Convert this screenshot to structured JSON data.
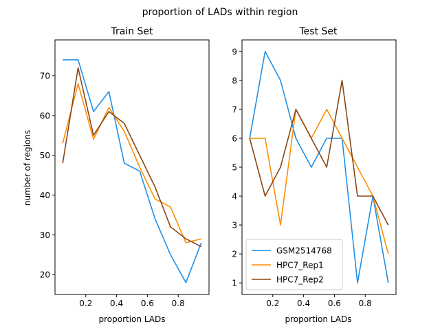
{
  "figure": {
    "suptitle": "proportion of LADs within region"
  },
  "colors": {
    "GSM2514768": "#1f8fe8",
    "HPC7_Rep1": "#ff8c00",
    "HPC7_Rep2": "#8b4513"
  },
  "chart_data": [
    {
      "type": "line",
      "title": "Train Set",
      "xlabel": "proportion LADs",
      "ylabel": "number of regions",
      "xlim": [
        0.0,
        1.0
      ],
      "ylim": [
        15,
        79
      ],
      "xticks": [
        0.2,
        0.4,
        0.6,
        0.8
      ],
      "xtick_labels": [
        "0.2",
        "0.4",
        "0.6",
        "0.8"
      ],
      "yticks": [
        20,
        30,
        40,
        50,
        60,
        70
      ],
      "ytick_labels": [
        "20",
        "30",
        "40",
        "50",
        "60",
        "70"
      ],
      "x": [
        0.05,
        0.15,
        0.25,
        0.35,
        0.45,
        0.55,
        0.65,
        0.75,
        0.85,
        0.95
      ],
      "series": [
        {
          "name": "GSM2514768",
          "values": [
            74,
            74,
            61,
            66,
            48,
            46,
            34,
            25,
            18,
            28
          ]
        },
        {
          "name": "HPC7_Rep1",
          "values": [
            53,
            68,
            54,
            62,
            56,
            47,
            39,
            37,
            28,
            29
          ]
        },
        {
          "name": "HPC7_Rep2",
          "values": [
            48,
            72,
            55,
            61,
            58,
            50,
            42,
            32,
            29,
            27
          ]
        }
      ]
    },
    {
      "type": "line",
      "title": "Test Set",
      "xlabel": "proportion LADs",
      "ylabel": "",
      "xlim": [
        0.0,
        1.0
      ],
      "ylim": [
        0.6,
        9.4
      ],
      "xticks": [
        0.2,
        0.4,
        0.6,
        0.8
      ],
      "xtick_labels": [
        "0.2",
        "0.4",
        "0.6",
        "0.8"
      ],
      "yticks": [
        1,
        2,
        3,
        4,
        5,
        6,
        7,
        8,
        9
      ],
      "ytick_labels": [
        "1",
        "2",
        "3",
        "4",
        "5",
        "6",
        "7",
        "8",
        "9"
      ],
      "x": [
        0.05,
        0.15,
        0.25,
        0.35,
        0.45,
        0.55,
        0.65,
        0.75,
        0.85,
        0.95
      ],
      "series": [
        {
          "name": "GSM2514768",
          "values": [
            6,
            9,
            8,
            6,
            5,
            6,
            6,
            1,
            4,
            1
          ]
        },
        {
          "name": "HPC7_Rep1",
          "values": [
            6,
            6,
            3,
            7,
            6,
            7,
            6,
            5,
            4,
            2
          ]
        },
        {
          "name": "HPC7_Rep2",
          "values": [
            6,
            4,
            5,
            7,
            6,
            5,
            8,
            4,
            4,
            3
          ]
        }
      ],
      "legend": {
        "placement": "lower-left",
        "entries": [
          "GSM2514768",
          "HPC7_Rep1",
          "HPC7_Rep2"
        ]
      }
    }
  ]
}
